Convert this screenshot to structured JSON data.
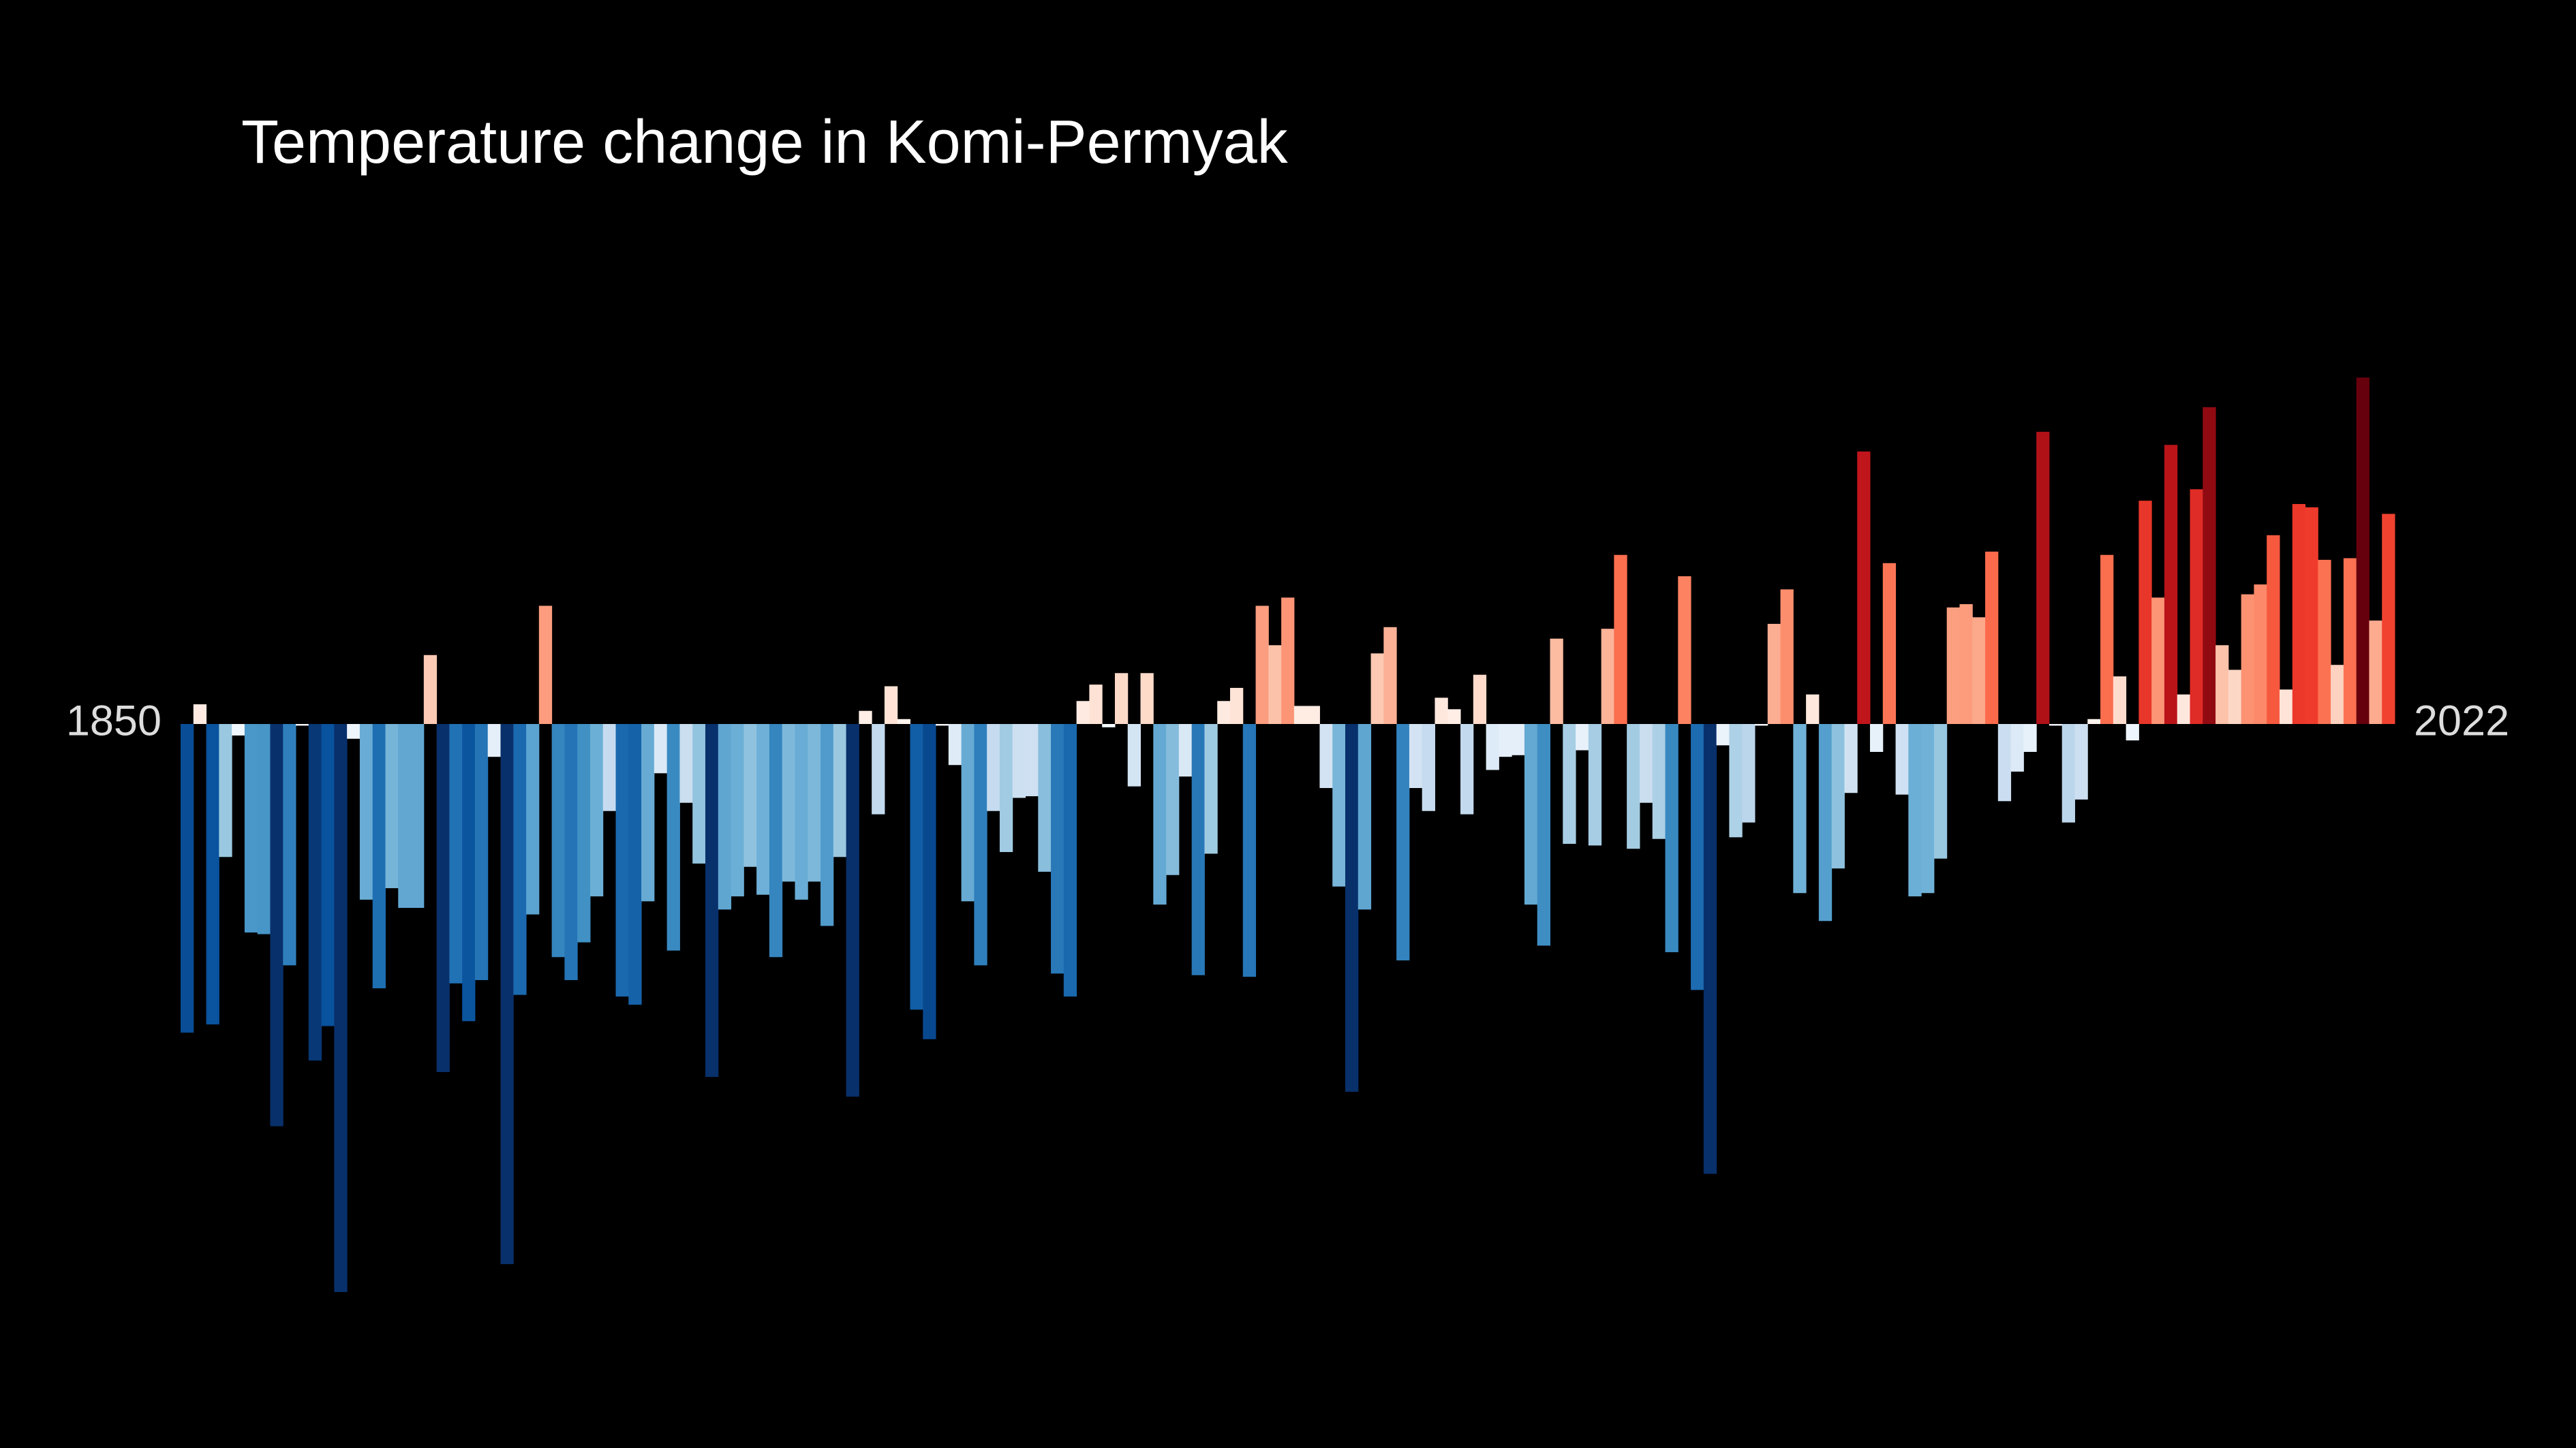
{
  "chart_data": {
    "type": "bar",
    "title": "Temperature change in Komi-Permyak",
    "categories": [
      "1850",
      null,
      null,
      null,
      null,
      null,
      null,
      null,
      null,
      null,
      null,
      null,
      null,
      null,
      null,
      null,
      null,
      null,
      null,
      null,
      null,
      null,
      null,
      null,
      null,
      null,
      null,
      null,
      null,
      null,
      null,
      null,
      null,
      null,
      null,
      null,
      null,
      null,
      null,
      null,
      null,
      null,
      null,
      null,
      null,
      null,
      null,
      null,
      null,
      null,
      null,
      null,
      null,
      null,
      null,
      null,
      null,
      null,
      null,
      null,
      null,
      null,
      null,
      null,
      null,
      null,
      null,
      null,
      null,
      null,
      null,
      null,
      null,
      null,
      null,
      null,
      null,
      null,
      null,
      null,
      null,
      null,
      null,
      null,
      null,
      null,
      null,
      null,
      null,
      null,
      null,
      null,
      null,
      null,
      null,
      null,
      null,
      null,
      null,
      null,
      null,
      null,
      null,
      null,
      null,
      null,
      null,
      null,
      null,
      null,
      null,
      null,
      null,
      null,
      null,
      null,
      null,
      null,
      null,
      null,
      null,
      null,
      null,
      null,
      null,
      null,
      null,
      null,
      null,
      null,
      null,
      null,
      null,
      null,
      null,
      null,
      null,
      null,
      null,
      null,
      null,
      null,
      null,
      null,
      null,
      null,
      null,
      null,
      null,
      null,
      null,
      null,
      null,
      null,
      null,
      null,
      null,
      null,
      null,
      null,
      null,
      null,
      null,
      null,
      null,
      null,
      null,
      null,
      null,
      null,
      null,
      null,
      "2022"
    ],
    "values": [
      -1.88,
      0.12,
      -1.83,
      -0.81,
      -0.07,
      -1.27,
      -1.28,
      -2.45,
      -1.47,
      -0.01,
      -2.05,
      -1.84,
      -3.46,
      -0.09,
      -1.07,
      -1.61,
      -1.0,
      -1.12,
      -1.12,
      0.42,
      -2.12,
      -1.58,
      -1.81,
      -1.56,
      -0.2,
      -3.29,
      -1.65,
      -1.16,
      0.72,
      -1.42,
      -1.56,
      -1.33,
      -1.05,
      -0.53,
      -1.66,
      -1.71,
      -1.08,
      -0.3,
      -1.38,
      -0.48,
      -0.85,
      -2.15,
      -1.13,
      -1.05,
      -0.87,
      -1.04,
      -1.42,
      -0.96,
      -1.07,
      -0.96,
      -1.23,
      -0.81,
      -2.27,
      0.08,
      -0.55,
      0.23,
      0.03,
      -1.74,
      -1.92,
      -0.01,
      -0.25,
      -1.08,
      -1.47,
      -0.53,
      -0.78,
      -0.45,
      -0.44,
      -0.9,
      -1.52,
      -1.66,
      0.14,
      0.24,
      -0.02,
      0.31,
      -0.38,
      0.31,
      -1.1,
      -0.92,
      -0.32,
      -1.53,
      -0.79,
      0.14,
      0.22,
      -1.54,
      0.72,
      0.48,
      0.77,
      0.11,
      0.11,
      -0.39,
      -0.99,
      -2.24,
      -1.13,
      0.43,
      0.59,
      -1.44,
      -0.39,
      -0.53,
      0.16,
      0.09,
      -0.55,
      0.3,
      -0.28,
      -0.2,
      -0.19,
      -1.1,
      -1.35,
      0.52,
      -0.73,
      -0.16,
      -0.74,
      0.58,
      1.03,
      -0.76,
      -0.48,
      -0.7,
      -1.39,
      0.9,
      -1.62,
      -2.74,
      -0.13,
      -0.69,
      -0.6,
      -0.01,
      0.61,
      0.82,
      -1.03,
      0.18,
      -1.2,
      -0.88,
      -0.42,
      1.66,
      -0.17,
      0.98,
      -0.43,
      -1.05,
      -1.03,
      -0.82,
      0.71,
      0.73,
      0.65,
      1.05,
      -0.47,
      -0.29,
      -0.17,
      1.78,
      -0.01,
      -0.6,
      -0.46,
      0.03,
      1.03,
      0.29,
      -0.1,
      1.36,
      0.77,
      1.7,
      0.18,
      1.43,
      1.93,
      0.48,
      0.33,
      0.79,
      0.85,
      1.15,
      0.21,
      1.34,
      1.32,
      1.0,
      0.36,
      1.01,
      2.11,
      0.63,
      1.28
    ],
    "ylim": [
      -4.41,
      4.41
    ],
    "colormap": "RdBu_r",
    "background": "#000000"
  }
}
